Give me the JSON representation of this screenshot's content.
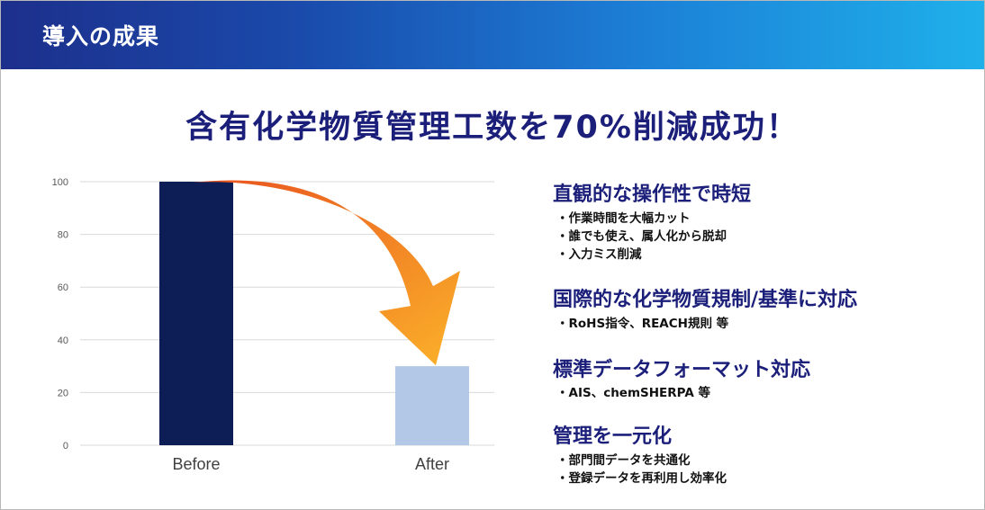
{
  "header": {
    "title": "導入の成果"
  },
  "headline": "含有化学物質管理工数を70%削減成功！",
  "chart_data": {
    "type": "bar",
    "categories": [
      "Before",
      "After"
    ],
    "values": [
      100,
      30
    ],
    "yticks": [
      "0",
      "20",
      "40",
      "60",
      "80",
      "100"
    ],
    "ylim": [
      0,
      100
    ],
    "grid": true,
    "legend": "none",
    "colors": [
      "#0d1e56",
      "#b3c7e6"
    ],
    "arrow_colors": [
      "#e8521f",
      "#fbb12a"
    ]
  },
  "points": [
    {
      "title": "直観的な操作性で時短",
      "bullets": [
        "・作業時間を大幅カット",
        "・誰でも使え、属人化から脱却",
        "・入力ミス削減"
      ]
    },
    {
      "title": "国際的な化学物質規制/基準に対応",
      "bullets": [
        "・RoHS指令、REACH規則 等"
      ]
    },
    {
      "title": "標準データフォーマット対応",
      "bullets": [
        "・AIS、chemSHERPA 等"
      ]
    },
    {
      "title": "管理を一元化",
      "bullets": [
        "・部門間データを共通化",
        "・登録データを再利用し効率化"
      ]
    }
  ]
}
